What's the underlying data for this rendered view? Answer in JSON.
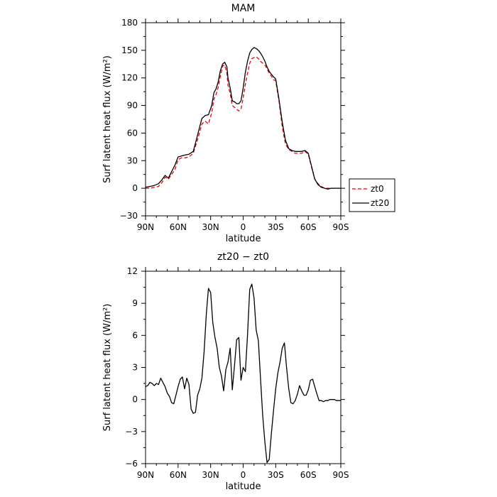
{
  "chart_data": [
    {
      "type": "line",
      "title": "MAM",
      "xlabel": "latitude",
      "ylabel": "Surf latent heat flux (W/m²)",
      "xlim": [
        90,
        -90
      ],
      "ylim": [
        -30,
        180
      ],
      "xticks": [
        90,
        60,
        30,
        0,
        -30,
        -60,
        -90
      ],
      "xticklabels": [
        "90N",
        "60N",
        "30N",
        "0",
        "30S",
        "60S",
        "90S"
      ],
      "yticks": [
        -30,
        0,
        30,
        60,
        90,
        120,
        150,
        180
      ],
      "yticklabels": [
        "−30",
        "0",
        "30",
        "60",
        "90",
        "120",
        "150",
        "180"
      ],
      "legend_position": "right-bottom-outside",
      "series": [
        {
          "name": "zt0",
          "color": "#e8000b",
          "dash": "dashed",
          "x": [
            90,
            86,
            82,
            78,
            75,
            72,
            69,
            66,
            63,
            60,
            57,
            54,
            50,
            46,
            42,
            38,
            35,
            32,
            29,
            27,
            25,
            23,
            21,
            19,
            17,
            15,
            14,
            12,
            10,
            8,
            6,
            4,
            2,
            0,
            -2,
            -4,
            -6,
            -8,
            -10,
            -12,
            -14,
            -16,
            -18,
            -20,
            -22,
            -24,
            -26,
            -28,
            -30,
            -33,
            -36,
            -39,
            -42,
            -45,
            -48,
            -51,
            -54,
            -57,
            -60,
            -63,
            -66,
            -69,
            -72,
            -75,
            -78,
            -81,
            -84,
            -87,
            -90
          ],
          "y": [
            0,
            0,
            1,
            2,
            6,
            12,
            10,
            15,
            20,
            31,
            33,
            33,
            34,
            38,
            53,
            70,
            73,
            70,
            82,
            97,
            102,
            110,
            122,
            133,
            134,
            125,
            112,
            103,
            90,
            88,
            86,
            84,
            86,
            98,
            113,
            125,
            136,
            141,
            142,
            143,
            141,
            138,
            136,
            134,
            130,
            125,
            122,
            118,
            117,
            95,
            67,
            48,
            42,
            40,
            38,
            38,
            38,
            40,
            37,
            23,
            10,
            5,
            2,
            0,
            0,
            0,
            0,
            0,
            0
          ]
        },
        {
          "name": "zt20",
          "color": "#000000",
          "dash": "solid",
          "x": [
            90,
            86,
            82,
            78,
            75,
            72,
            69,
            66,
            63,
            60,
            57,
            54,
            50,
            46,
            42,
            38,
            35,
            32,
            29,
            27,
            25,
            23,
            21,
            19,
            17,
            15,
            14,
            12,
            10,
            8,
            6,
            4,
            2,
            0,
            -2,
            -4,
            -6,
            -8,
            -10,
            -12,
            -14,
            -16,
            -18,
            -20,
            -22,
            -24,
            -26,
            -28,
            -30,
            -33,
            -36,
            -39,
            -42,
            -45,
            -48,
            -51,
            -54,
            -57,
            -60,
            -63,
            -66,
            -69,
            -72,
            -75,
            -78,
            -81,
            -84,
            -87,
            -90
          ],
          "y": [
            1,
            2,
            3,
            5,
            9,
            14,
            11,
            18,
            25,
            34,
            35,
            36,
            37,
            40,
            58,
            76,
            79,
            80,
            90,
            104,
            108,
            116,
            128,
            135,
            137,
            132,
            120,
            109,
            95,
            94,
            92,
            92,
            95,
            109,
            126,
            138,
            147,
            151,
            153,
            152,
            150,
            147,
            143,
            138,
            132,
            127,
            124,
            121,
            119,
            97,
            72,
            52,
            43,
            41,
            40,
            40,
            40,
            41,
            38,
            24,
            10,
            4,
            1,
            0,
            -1,
            0,
            0,
            0,
            0
          ]
        }
      ]
    },
    {
      "type": "line",
      "title": "zt20 − zt0",
      "xlabel": "latitude",
      "ylabel": "Surf latent heat flux (W/m²)",
      "xlim": [
        90,
        -90
      ],
      "ylim": [
        -6,
        12
      ],
      "xticks": [
        90,
        60,
        30,
        0,
        -30,
        -60,
        -90
      ],
      "xticklabels": [
        "90N",
        "60N",
        "30N",
        "0",
        "30S",
        "60S",
        "90S"
      ],
      "yticks": [
        -6,
        -3,
        0,
        3,
        6,
        9,
        12
      ],
      "yticklabels": [
        "−6",
        "−3",
        "0",
        "3",
        "6",
        "9",
        "12"
      ],
      "series": [
        {
          "color": "#000000",
          "dash": "solid",
          "x": [
            90,
            88,
            86,
            84,
            82,
            80,
            78,
            76,
            74,
            72,
            70,
            68,
            66,
            64,
            62,
            60,
            58,
            56,
            54,
            52,
            50,
            48,
            46,
            44,
            42,
            40,
            38,
            36,
            34,
            32,
            30,
            28,
            26,
            24,
            22,
            20,
            18,
            16,
            14,
            12,
            10,
            8,
            6,
            4,
            2,
            0,
            -2,
            -4,
            -6,
            -8,
            -10,
            -12,
            -14,
            -16,
            -18,
            -20,
            -22,
            -24,
            -26,
            -28,
            -30,
            -32,
            -34,
            -36,
            -38,
            -40,
            -42,
            -44,
            -46,
            -48,
            -50,
            -52,
            -54,
            -56,
            -58,
            -60,
            -62,
            -64,
            -66,
            -68,
            -70,
            -72,
            -74,
            -76,
            -78,
            -80,
            -82,
            -84,
            -86,
            -88,
            -90
          ],
          "y": [
            1.2,
            1.3,
            1.6,
            1.5,
            1.3,
            1.5,
            1.4,
            2.0,
            1.6,
            1.2,
            0.6,
            0.3,
            -0.3,
            -0.4,
            0.4,
            1.2,
            1.9,
            2.1,
            1.0,
            2.0,
            1.4,
            -0.9,
            -1.3,
            -1.2,
            0.4,
            1.0,
            2.0,
            4.5,
            8.0,
            10.4,
            10.0,
            7.2,
            5.8,
            4.8,
            3.0,
            2.2,
            0.8,
            2.8,
            3.5,
            4.8,
            0.9,
            3.2,
            5.6,
            5.8,
            1.8,
            3.0,
            2.6,
            6.0,
            10.3,
            10.8,
            9.5,
            6.5,
            5.5,
            2.0,
            -1.5,
            -4.0,
            -5.9,
            -5.6,
            -3.2,
            -1.0,
            1.0,
            2.5,
            3.5,
            4.8,
            5.3,
            3.0,
            1.0,
            -0.3,
            -0.4,
            -0.1,
            0.5,
            1.3,
            0.8,
            0.4,
            0.4,
            0.9,
            1.8,
            1.9,
            1.2,
            0.5,
            -0.1,
            -0.1,
            -0.2,
            -0.1,
            -0.1,
            0.0,
            0.0,
            0.0,
            -0.1,
            -0.1,
            -0.1
          ]
        }
      ]
    }
  ]
}
